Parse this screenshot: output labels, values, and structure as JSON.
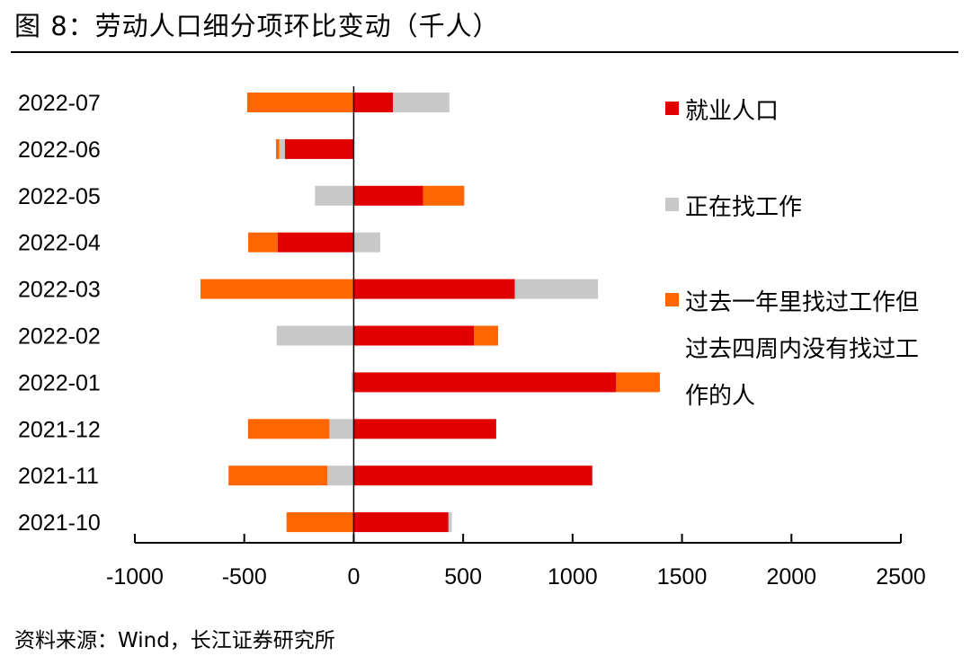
{
  "header": {
    "title": "图 8：劳动人口细分项环比变动（千人）"
  },
  "footer": {
    "source": "资料来源：Wind，长江证券研究所"
  },
  "chart_data": {
    "type": "bar",
    "orientation": "horizontal",
    "stacked": true,
    "categories": [
      "2022-07",
      "2022-06",
      "2022-05",
      "2022-04",
      "2022-03",
      "2022-02",
      "2022-01",
      "2021-12",
      "2021-11",
      "2021-10"
    ],
    "series": [
      {
        "name": "就业人口",
        "color": "#e00000",
        "values": [
          179,
          -315,
          317,
          -348,
          736,
          550,
          1199,
          651,
          1090,
          433
        ]
      },
      {
        "name": "正在找工作",
        "color": "#c8c8c8",
        "values": [
          258,
          -25,
          -177,
          121,
          380,
          -352,
          -10,
          -111,
          -120,
          15
        ]
      },
      {
        "name": "过去一年里找过工作但过去四周内没有找过工作的人",
        "color": "#ff6600",
        "values": [
          -487,
          -15,
          188,
          -134,
          -700,
          110,
          200,
          -372,
          -452,
          -307
        ]
      }
    ],
    "legend_lines": [
      [
        "就业人口"
      ],
      [
        "正在找工作"
      ],
      [
        "过去一年里找过工作但",
        "过去四周内没有找过工",
        "作的人"
      ]
    ],
    "xlim": [
      -1000,
      2500
    ],
    "xticks": [
      -1000,
      -500,
      0,
      500,
      1000,
      1500,
      2000,
      2500
    ],
    "xlabel": "",
    "ylabel": "",
    "legend_position": "right",
    "grid": false
  }
}
